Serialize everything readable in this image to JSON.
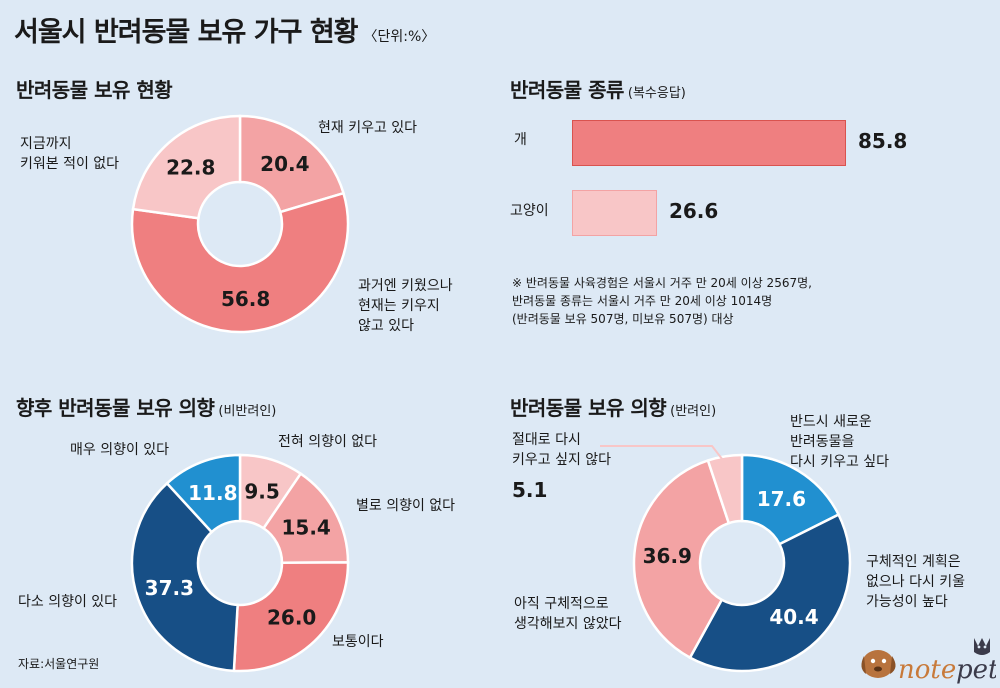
{
  "title": "서울시 반려동물 보유 가구 현황",
  "unit": "〈단위:%〉",
  "source": "자료:서울연구원",
  "note": "※ 반려동물 사육경험은 서울시 거주 만 20세 이상 2567명,\n    반려동물 종류는 서울시 거주 만 20세 이상 1014명\n    (반려동물 보유 507명, 미보유 507명) 대상",
  "colors": {
    "pink_dark": "#ef7f80",
    "pink_mid": "#f3a3a4",
    "pink_light": "#f8c6c7",
    "blue_dark": "#174f86",
    "blue_light": "#2190d0",
    "background": "#dde9f5"
  },
  "logo_icon": "dog-cat-notepet-logo",
  "chart_data": [
    {
      "type": "pie",
      "title": "반려동물 보유 현황",
      "subtitle": "",
      "slices": [
        {
          "label": "현재 키우고 있다",
          "value": 20.4,
          "color": "#f3a3a4"
        },
        {
          "label": "과거엔 키웠으나\n현재는 키우지\n않고 있다",
          "value": 56.8,
          "color": "#ef7f80"
        },
        {
          "label": "지금까지\n키워본 적이 없다",
          "value": 22.8,
          "color": "#f8c6c7"
        }
      ]
    },
    {
      "type": "bar",
      "title": "반려동물 종류",
      "subtitle": "(복수응답)",
      "categories": [
        "개",
        "고양이"
      ],
      "values": [
        85.8,
        26.6
      ],
      "colors": [
        "#ef7f80",
        "#f8c6c7"
      ],
      "xlim": [
        0,
        100
      ]
    },
    {
      "type": "pie",
      "title": "향후 반려동물 보유 의향",
      "subtitle": "(비반려인)",
      "slices": [
        {
          "label": "전혀 의향이 없다",
          "value": 9.5,
          "color": "#f8c6c7"
        },
        {
          "label": "별로 의향이 없다",
          "value": 15.4,
          "color": "#f3a3a4"
        },
        {
          "label": "보통이다",
          "value": 26.0,
          "color": "#ef7f80"
        },
        {
          "label": "다소 의향이 있다",
          "value": 37.3,
          "color": "#174f86"
        },
        {
          "label": "매우 의향이 있다",
          "value": 11.8,
          "color": "#2190d0"
        }
      ]
    },
    {
      "type": "pie",
      "title": "반려동물 보유 의향",
      "subtitle": "(반려인)",
      "slices": [
        {
          "label": "반드시 새로운\n반려동물을\n다시 키우고 싶다",
          "value": 17.6,
          "color": "#2190d0"
        },
        {
          "label": "구체적인 계획은\n없으나 다시 키울\n가능성이 높다",
          "value": 40.4,
          "color": "#174f86"
        },
        {
          "label": "아직 구체적으로\n생각해보지 않았다",
          "value": 36.9,
          "color": "#f3a3a4"
        },
        {
          "label": "절대로 다시\n키우고 싶지 않다",
          "value": 5.1,
          "color": "#f8c6c7"
        }
      ]
    }
  ]
}
